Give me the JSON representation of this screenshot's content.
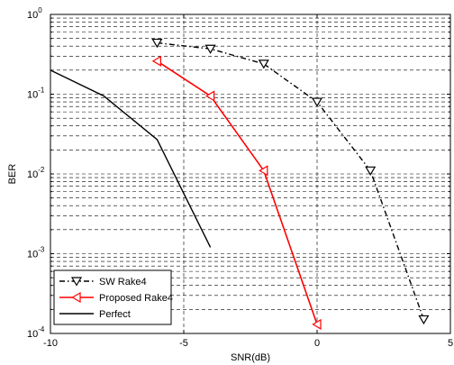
{
  "chart_data": {
    "type": "line",
    "xlabel": "SNR(dB)",
    "ylabel": "BER",
    "xlim": [
      -10,
      5
    ],
    "ylim": [
      0.0001,
      1
    ],
    "y_scale": "log",
    "grid": true,
    "legend_position": "bottom-left",
    "x_ticks": [
      {
        "value": -10,
        "label": "-10"
      },
      {
        "value": -5,
        "label": "-5"
      },
      {
        "value": 0,
        "label": "0"
      },
      {
        "value": 5,
        "label": "5"
      }
    ],
    "y_ticks": [
      {
        "value": 0.0001,
        "base": "10",
        "exp": "-4"
      },
      {
        "value": 0.001,
        "base": "10",
        "exp": "-3"
      },
      {
        "value": 0.01,
        "base": "10",
        "exp": "-2"
      },
      {
        "value": 0.1,
        "base": "10",
        "exp": "-1"
      },
      {
        "value": 1,
        "base": "10",
        "exp": "0"
      }
    ],
    "series": [
      {
        "name": "SW Rake4",
        "color": "#000000",
        "line_style": "dash-dot",
        "marker": "triangle-down",
        "x": [
          -6,
          -4,
          -2,
          0,
          2,
          4
        ],
        "y": [
          0.44,
          0.37,
          0.24,
          0.08,
          0.011,
          0.00015
        ]
      },
      {
        "name": "Proposed Rake4",
        "color": "#ff0000",
        "line_style": "solid",
        "marker": "triangle-left",
        "x": [
          -6,
          -4,
          -2,
          0
        ],
        "y": [
          0.26,
          0.095,
          0.011,
          0.00013
        ]
      },
      {
        "name": "Perfect",
        "color": "#000000",
        "line_style": "solid",
        "marker": "none",
        "x": [
          -10,
          -8,
          -6,
          -4
        ],
        "y": [
          0.2,
          0.095,
          0.027,
          0.0012
        ]
      }
    ]
  }
}
